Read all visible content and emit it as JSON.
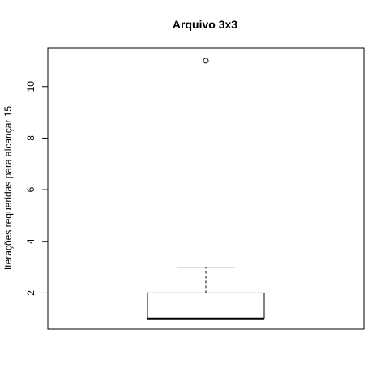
{
  "chart_data": {
    "type": "box",
    "title": "Arquivo 3x3",
    "xlabel": "",
    "ylabel": "Iterações requeridas para alcançar 15",
    "ylim": [
      0.6,
      11.5
    ],
    "yticks": [
      "2",
      "4",
      "6",
      "8",
      "10"
    ],
    "box": {
      "min": 1,
      "q1": 1,
      "median": 1,
      "q3": 2,
      "max": 3,
      "outliers": [
        11
      ]
    },
    "grid": false,
    "legend": "none"
  }
}
